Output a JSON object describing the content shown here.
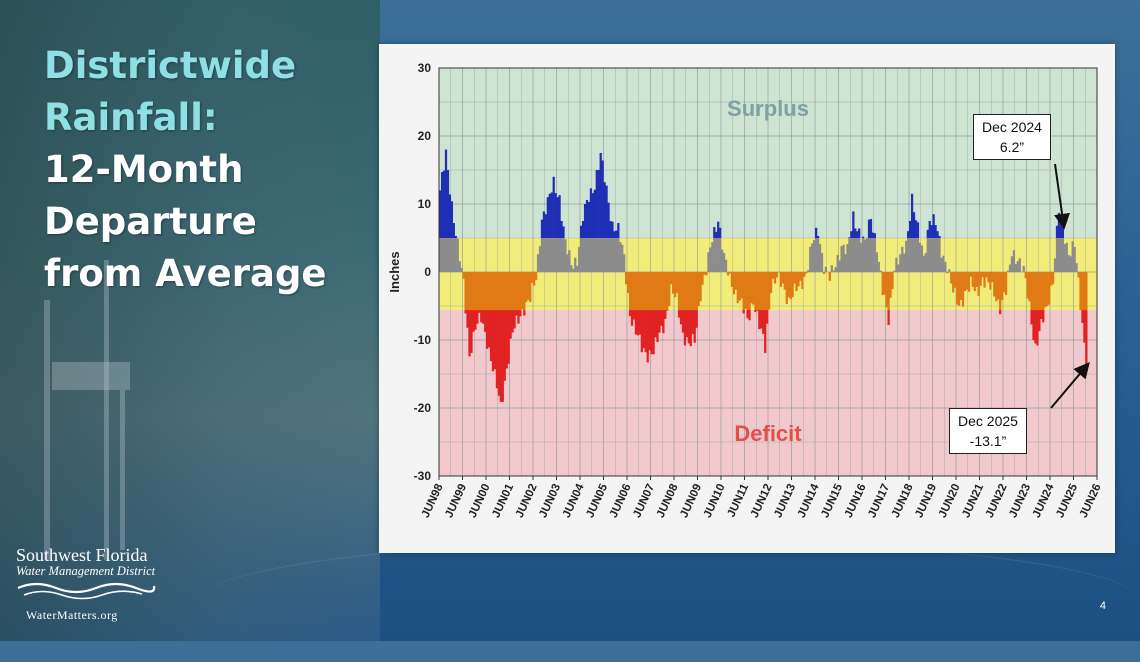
{
  "slide": {
    "title_lines": [
      "Districtwide",
      "Rainfall:",
      "12-Month",
      "Departure",
      "from Average"
    ],
    "page_number": "4"
  },
  "logo": {
    "name": "Southwest Florida",
    "subtitle": "Water Management District",
    "url": "WaterMatters.org"
  },
  "colors": {
    "surplus_zone": "#cfe3d3",
    "normal_band": "#f2ec7a",
    "deficit_zone": "#f1c9cc",
    "bar_blue": "#1f2fb5",
    "bar_gray": "#8c8c8c",
    "bar_orange": "#e07a14",
    "bar_red": "#e02222"
  },
  "chart_data": {
    "type": "bar",
    "ylabel": "Inches",
    "ylim": [
      -30,
      30
    ],
    "yticks": [
      30,
      20,
      10,
      0,
      -10,
      -20,
      -30
    ],
    "grid": true,
    "normal_band": [
      -5.6,
      5.0
    ],
    "zone_labels": {
      "surplus": "Surplus",
      "deficit": "Deficit"
    },
    "x_tick_labels": [
      "JUN98",
      "JUN99",
      "JUN00",
      "JUN01",
      "JUN02",
      "JUN03",
      "JUN04",
      "JUN05",
      "JUN06",
      "JUN07",
      "JUN08",
      "JUN09",
      "JUN10",
      "JUN11",
      "JUN12",
      "JUN13",
      "JUN14",
      "JUN15",
      "JUN16",
      "JUN17",
      "JUN18",
      "JUN19",
      "JUN20",
      "JUN21",
      "JUN22",
      "JUN23",
      "JUN24",
      "JUN25",
      "JUN26"
    ],
    "series_start": "1998-06",
    "series_end": "2025-12",
    "keypoints": [
      [
        "1998-06",
        12
      ],
      [
        "1998-09",
        17
      ],
      [
        "1998-12",
        10
      ],
      [
        "1999-03",
        4
      ],
      [
        "1999-06",
        -2
      ],
      [
        "1999-09",
        -12
      ],
      [
        "1999-12",
        -8
      ],
      [
        "2000-03",
        -7
      ],
      [
        "2000-06",
        -10
      ],
      [
        "2000-09",
        -14
      ],
      [
        "2001-01",
        -20
      ],
      [
        "2001-04",
        -14
      ],
      [
        "2001-07",
        -9
      ],
      [
        "2001-10",
        -7
      ],
      [
        "2002-01",
        -5
      ],
      [
        "2002-04",
        -4
      ],
      [
        "2002-07",
        -1
      ],
      [
        "2002-10",
        8
      ],
      [
        "2003-01",
        10
      ],
      [
        "2003-04",
        13
      ],
      [
        "2003-07",
        11
      ],
      [
        "2003-10",
        4
      ],
      [
        "2004-01",
        1
      ],
      [
        "2004-04",
        2
      ],
      [
        "2004-07",
        8
      ],
      [
        "2004-10",
        11
      ],
      [
        "2005-01",
        13
      ],
      [
        "2005-04",
        17
      ],
      [
        "2005-07",
        12
      ],
      [
        "2005-10",
        7
      ],
      [
        "2006-01",
        6
      ],
      [
        "2006-04",
        2
      ],
      [
        "2006-07",
        -6
      ],
      [
        "2006-10",
        -9
      ],
      [
        "2007-01",
        -11
      ],
      [
        "2007-04",
        -12
      ],
      [
        "2007-07",
        -12
      ],
      [
        "2007-10",
        -9
      ],
      [
        "2008-01",
        -7
      ],
      [
        "2008-04",
        -3
      ],
      [
        "2008-07",
        -4
      ],
      [
        "2008-10",
        -9
      ],
      [
        "2009-01",
        -11
      ],
      [
        "2009-04",
        -10
      ],
      [
        "2009-07",
        -3
      ],
      [
        "2009-10",
        0
      ],
      [
        "2010-01",
        5
      ],
      [
        "2010-04",
        8
      ],
      [
        "2010-07",
        2
      ],
      [
        "2010-10",
        -1
      ],
      [
        "2011-01",
        -3
      ],
      [
        "2011-04",
        -5
      ],
      [
        "2011-07",
        -7
      ],
      [
        "2011-10",
        -4
      ],
      [
        "2012-01",
        -8
      ],
      [
        "2012-04",
        -11
      ],
      [
        "2012-07",
        -2
      ],
      [
        "2012-10",
        -1
      ],
      [
        "2013-01",
        -2
      ],
      [
        "2013-04",
        -4
      ],
      [
        "2013-07",
        -3
      ],
      [
        "2013-10",
        -2
      ],
      [
        "2014-01",
        0
      ],
      [
        "2014-04",
        4
      ],
      [
        "2014-07",
        6
      ],
      [
        "2014-10",
        1
      ],
      [
        "2015-01",
        -1
      ],
      [
        "2015-04",
        1
      ],
      [
        "2015-07",
        4
      ],
      [
        "2015-10",
        3
      ],
      [
        "2016-01",
        8
      ],
      [
        "2016-04",
        6
      ],
      [
        "2016-07",
        4
      ],
      [
        "2016-10",
        8
      ],
      [
        "2017-01",
        4
      ],
      [
        "2017-04",
        -3
      ],
      [
        "2017-07",
        -7
      ],
      [
        "2017-10",
        1
      ],
      [
        "2018-01",
        2
      ],
      [
        "2018-04",
        4
      ],
      [
        "2018-07",
        11
      ],
      [
        "2018-10",
        6
      ],
      [
        "2019-01",
        2
      ],
      [
        "2019-04",
        8
      ],
      [
        "2019-07",
        7
      ],
      [
        "2019-10",
        3
      ],
      [
        "2020-01",
        1
      ],
      [
        "2020-04",
        -3
      ],
      [
        "2020-07",
        -5
      ],
      [
        "2020-10",
        -3
      ],
      [
        "2021-01",
        -2
      ],
      [
        "2021-04",
        -3
      ],
      [
        "2021-07",
        -1
      ],
      [
        "2021-10",
        -2
      ],
      [
        "2022-01",
        -3
      ],
      [
        "2022-04",
        -5
      ],
      [
        "2022-07",
        -3
      ],
      [
        "2022-10",
        3
      ],
      [
        "2023-01",
        2
      ],
      [
        "2023-04",
        0
      ],
      [
        "2023-07",
        -5
      ],
      [
        "2023-10",
        -11
      ],
      [
        "2024-01",
        -8
      ],
      [
        "2024-04",
        -5
      ],
      [
        "2024-07",
        -1
      ],
      [
        "2024-10",
        9
      ],
      [
        "2024-12",
        6.2
      ],
      [
        "2025-03",
        3
      ],
      [
        "2025-06",
        4
      ],
      [
        "2025-09",
        -5
      ],
      [
        "2025-12",
        -13.1
      ]
    ],
    "annotations": [
      {
        "date": "2024-12",
        "value": 6.2,
        "line1": "Dec 2024",
        "line2": "6.2”"
      },
      {
        "date": "2025-12",
        "value": -13.1,
        "line1": "Dec 2025",
        "line2": "-13.1”"
      }
    ]
  }
}
